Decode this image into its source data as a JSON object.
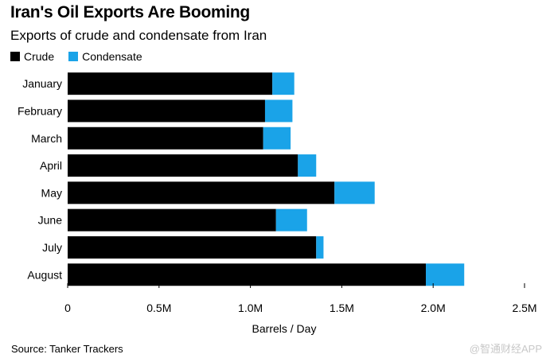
{
  "header": {
    "title": "Iran's Oil Exports Are Booming",
    "subtitle": "Exports of crude and condensate from Iran"
  },
  "legend": [
    {
      "label": "Crude",
      "color": "#000000"
    },
    {
      "label": "Condensate",
      "color": "#1aa3e8"
    }
  ],
  "chart_data": {
    "type": "bar",
    "orientation": "horizontal",
    "stacked": true,
    "categories": [
      "January",
      "February",
      "March",
      "April",
      "May",
      "June",
      "July",
      "August"
    ],
    "series": [
      {
        "name": "Crude",
        "color": "#000000",
        "values": [
          1.12,
          1.08,
          1.07,
          1.26,
          1.46,
          1.14,
          1.36,
          1.96
        ]
      },
      {
        "name": "Condensate",
        "color": "#1aa3e8",
        "values": [
          0.12,
          0.15,
          0.15,
          0.1,
          0.22,
          0.17,
          0.04,
          0.21
        ]
      }
    ],
    "xlim": [
      0,
      2.5
    ],
    "xticks": [
      0,
      0.5,
      1.0,
      1.5,
      2.0,
      2.5
    ],
    "xtick_labels": [
      "0",
      "0.5M",
      "1.0M",
      "1.5M",
      "2.0M",
      "2.5M"
    ],
    "xlabel": "Barrels / Day",
    "legend_position": "top-left"
  },
  "footer": {
    "source": "Source: Tanker Trackers",
    "watermark": "@智通财经APP"
  }
}
